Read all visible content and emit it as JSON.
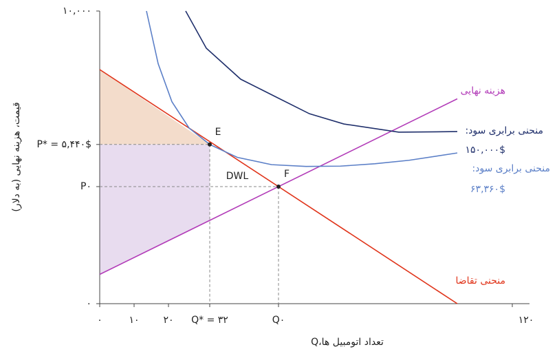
{
  "chart_data": {
    "type": "line",
    "xlabel": "Q،تعداد اتومبیل ها",
    "ylabel": "قیمت، هزینه نهایی (به دلار)",
    "xlim": [
      0,
      120
    ],
    "ylim": [
      0,
      10000
    ],
    "xticks": [
      {
        "value": 0,
        "label": "۰"
      },
      {
        "value": 10,
        "label": "۱۰"
      },
      {
        "value": 20,
        "label": "۲۰"
      },
      {
        "value": 32,
        "label": "Q* = ۳۲"
      },
      {
        "value": 52,
        "label": "Q۰"
      },
      {
        "value": 120,
        "label": "۱۲۰"
      }
    ],
    "yticks": [
      {
        "value": 0,
        "label": "۰"
      },
      {
        "value": 4000,
        "label": "P۰"
      },
      {
        "value": 5440,
        "label": "P* = ۵,۴۴۰$"
      },
      {
        "value": 10000,
        "label": "۱۰,۰۰۰"
      }
    ],
    "series": [
      {
        "name": "منحنی تقاضا",
        "color": "#e0341a",
        "x": [
          0,
          104
        ],
        "values": [
          8000,
          0
        ]
      },
      {
        "name": "هزینه نهایی",
        "color": "#b23cb8",
        "x": [
          0,
          104
        ],
        "values": [
          1000,
          7000
        ]
      },
      {
        "label_lines": [
          ":منحنی برابری سود",
          "۱۵۰,۰۰۰$"
        ],
        "color": "#1f2f6b",
        "x": [
          25,
          31,
          41,
          51,
          61,
          71,
          87,
          104
        ],
        "values": [
          10000,
          8730,
          7670,
          7080,
          6490,
          6140,
          5860,
          5880
        ]
      },
      {
        "label_lines": [
          ":منحنی برابری سود",
          "۶۳,۳۶۰$"
        ],
        "color": "#5b7fc7",
        "x": [
          13.6,
          17,
          21,
          26,
          32,
          40,
          50,
          60,
          70,
          80,
          90,
          104
        ],
        "values": [
          10000,
          8200,
          6900,
          6000,
          5440,
          5000,
          4750,
          4690,
          4700,
          4780,
          4900,
          5150
        ]
      }
    ],
    "points": [
      {
        "label": "E",
        "x": 32,
        "y": 5440
      },
      {
        "label": "F",
        "x": 52,
        "y": 4000
      }
    ],
    "annotations": [
      {
        "text": "DWL",
        "x": 40,
        "y": 4350
      }
    ],
    "shading": {
      "surplus_color": "#f3dccb",
      "cost_color": "#e8dcef"
    }
  }
}
